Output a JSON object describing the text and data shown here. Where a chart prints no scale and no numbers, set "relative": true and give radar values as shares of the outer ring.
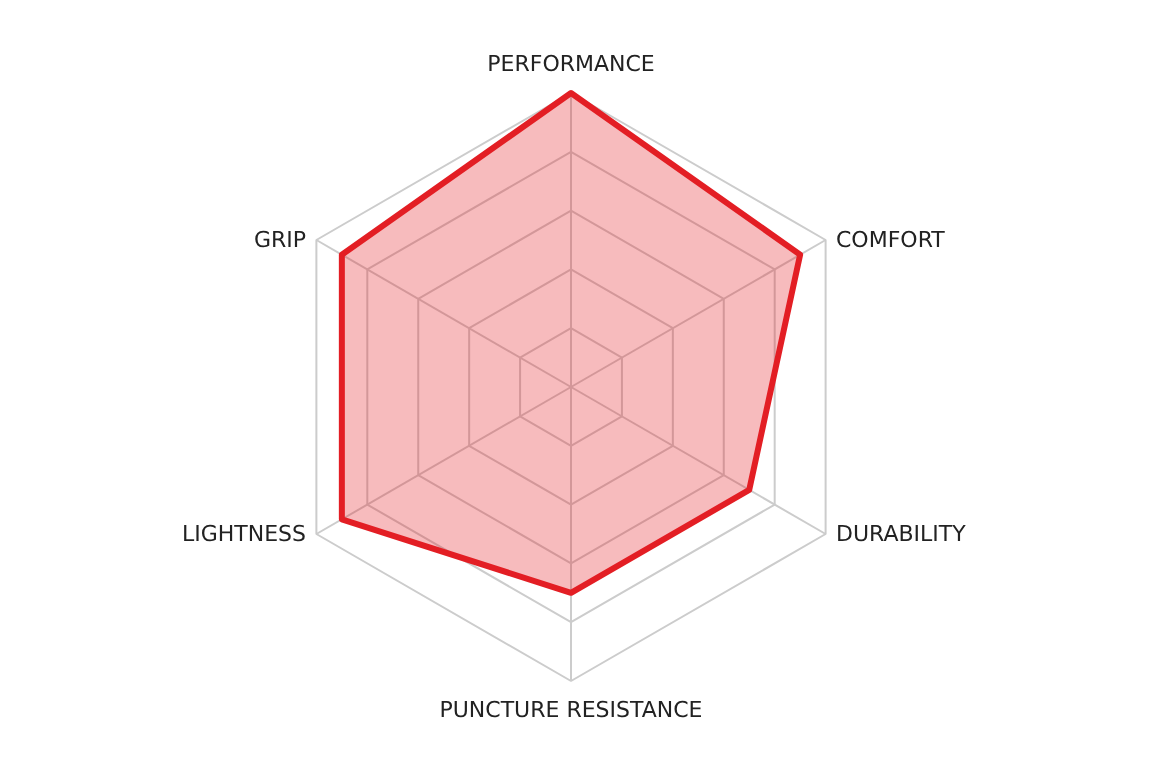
{
  "chart_data": {
    "type": "radar",
    "relative": true,
    "grid": true,
    "categories": [
      "PERFORMANCE",
      "COMFORT",
      "DURABILITY",
      "PUNCTURE RESISTANCE",
      "LIGHTNESS",
      "GRIP"
    ],
    "series": [
      {
        "color": "#e31e24",
        "values": [
          1,
          0.9,
          0.7,
          0.7,
          0.9,
          0.9
        ]
      }
    ]
  }
}
